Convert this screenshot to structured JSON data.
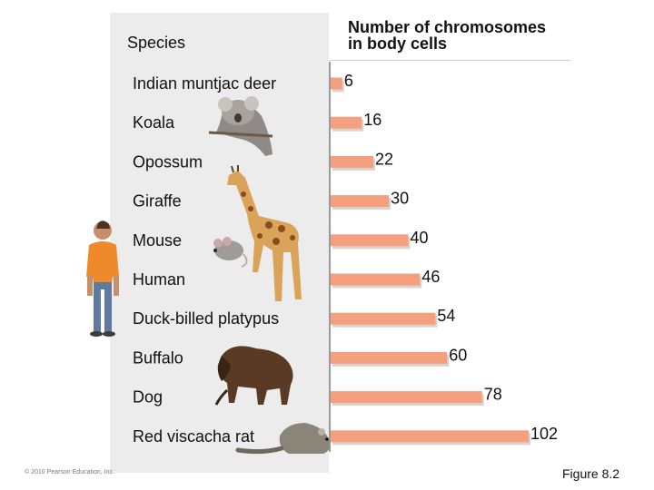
{
  "header": {
    "species": "Species",
    "chromosomes_line1": "Number of chromosomes",
    "chromosomes_line2": "in body cells"
  },
  "footer": {
    "copyright": "© 2010 Pearson Education, Inc.",
    "figure": "Figure 8.2"
  },
  "colors": {
    "bar": "#f4a07e",
    "bar_shadow": "#d9d3cf",
    "panel": "#ececec"
  },
  "icons": [
    "koala-icon",
    "giraffe-icon",
    "mouse-icon",
    "human-icon",
    "buffalo-icon",
    "red-viscacha-rat-icon"
  ],
  "chart_data": {
    "type": "bar",
    "orientation": "horizontal",
    "categories": [
      "Indian muntjac deer",
      "Koala",
      "Opossum",
      "Giraffe",
      "Mouse",
      "Human",
      "Duck-billed platypus",
      "Buffalo",
      "Dog",
      "Red viscacha rat"
    ],
    "values": [
      6,
      16,
      22,
      30,
      40,
      46,
      54,
      60,
      78,
      102
    ],
    "title": "",
    "xlabel": "Number of chromosomes in body cells",
    "ylabel": "Species",
    "xlim": [
      0,
      104
    ],
    "grid": false,
    "legend": "none"
  }
}
